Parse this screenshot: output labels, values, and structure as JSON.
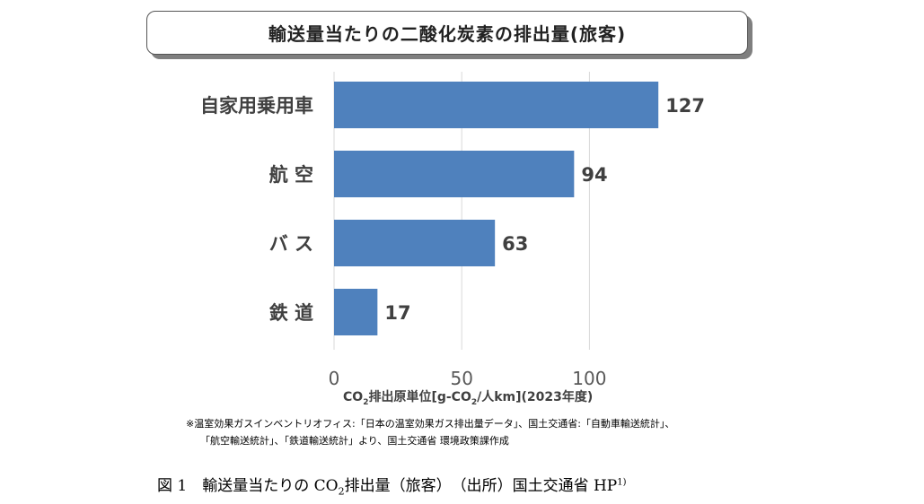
{
  "chart_data": {
    "type": "bar",
    "orientation": "horizontal",
    "title": "輸送量当たりの二酸化炭素の排出量(旅客)",
    "categories": [
      "自家用乗用車",
      "航空",
      "バス",
      "鉄道"
    ],
    "category_labels": [
      "自家用乗用車",
      "航 空",
      "バ ス",
      "鉄 道"
    ],
    "values": [
      127,
      94,
      63,
      17
    ],
    "value_labels": [
      "127",
      "94",
      "63",
      "17"
    ],
    "xlim": [
      0,
      140
    ],
    "xticks": [
      0,
      50,
      100
    ],
    "xtick_labels": [
      "0",
      "50",
      "100"
    ],
    "xlabel_parts": {
      "p1": "CO",
      "s1": "2",
      "p2": "排出原単位[g-CO",
      "s2": "2",
      "p3": "/人km](2023年度)"
    },
    "grid": "vertical",
    "bar_color": "#4F81BD"
  },
  "notes": {
    "line1": "※温室効果ガスインベントリオフィス:「日本の温室効果ガス排出量データ」、国土交通省:「自動車輸送統計」、",
    "line2": "「航空輸送統計」、「鉄道輸送統計」より、国土交通省 環境政策課作成"
  },
  "caption": {
    "p1": "図 1　輸送量当たりの CO",
    "sub": "2",
    "p2": "排出量（旅客）　（出所）国土交通省 HP",
    "sup": "1)"
  }
}
